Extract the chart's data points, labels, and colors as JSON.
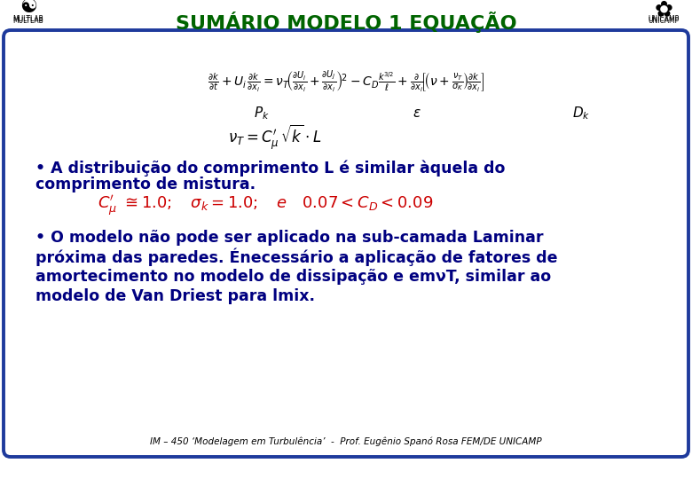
{
  "title": "SUMÁRIO MODELO 1 EQUAÇÃO",
  "title_color": "#006400",
  "title_fontsize": 16,
  "bg_color": "#ffffff",
  "border_color": "#1e3a9c",
  "text_color": "#000080",
  "formula_color": "#cc0000",
  "bullet_fontsize": 12.5,
  "formula_fontsize": 13,
  "footer_text": "IM – 450 ‘Modelagem em Turbulência’  -  Prof. Eugênio Spanó Rosa FEM/DE UNICAMP",
  "bullet1a": "• A distribuição do comprimento L é similar àquela do",
  "bullet1b": "comprimento de mistura.",
  "bullet2a": "• O modelo não pode ser aplicado na sub-camada Laminar",
  "bullet2b": "próxima das paredes. Énecessário a aplicação de fatores de",
  "bullet2c": "amortecimento no modelo de dissipação e emνT, similar ao",
  "bullet2d": "modelo de Van Driest para lmix.",
  "multlab_text": "MULTLAB",
  "unicamp_text": "UNICAMP",
  "eq1_fontsize": 10,
  "eq2_fontsize": 12
}
